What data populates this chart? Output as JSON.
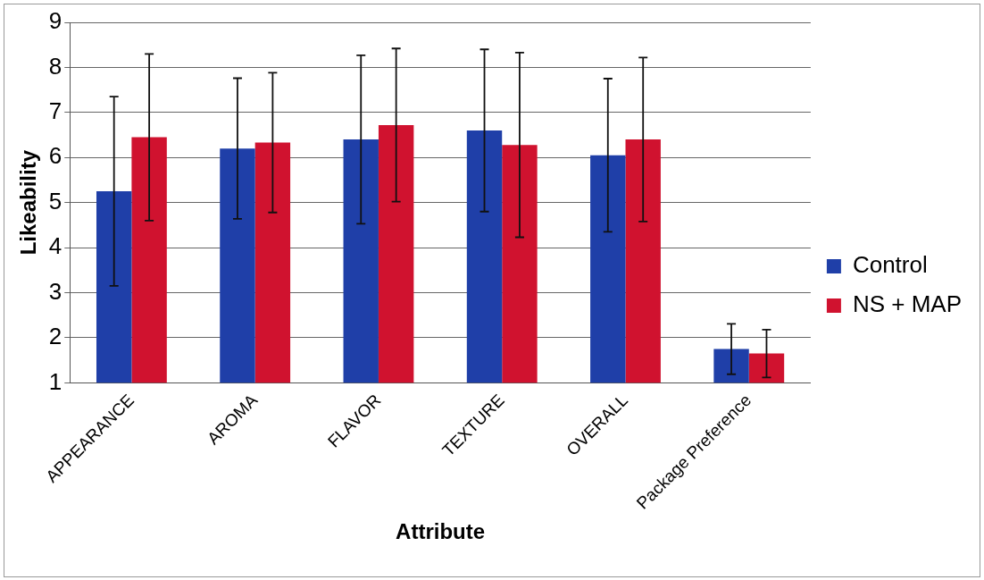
{
  "chart_data": {
    "type": "bar",
    "xlabel": "Attribute",
    "ylabel": "Likeability",
    "categories": [
      "APPEARANCE",
      "AROMA",
      "FLAVOR",
      "TEXTURE",
      "OVERALL",
      "Package Preference"
    ],
    "series": [
      {
        "name": "Control",
        "color": "#1f3fa8",
        "values": [
          5.25,
          6.2,
          6.4,
          6.6,
          6.05,
          1.75
        ],
        "errors": [
          2.1,
          1.56,
          1.87,
          1.8,
          1.7,
          0.56
        ]
      },
      {
        "name": "NS + MAP",
        "color": "#d0122f",
        "values": [
          6.45,
          6.33,
          6.72,
          6.28,
          6.4,
          1.65
        ],
        "errors": [
          1.85,
          1.55,
          1.7,
          2.05,
          1.82,
          0.53
        ]
      }
    ],
    "ylim": [
      1,
      9
    ],
    "yticks": [
      1,
      2,
      3,
      4,
      5,
      6,
      7,
      8,
      9
    ],
    "grid": "y",
    "legend": "right"
  }
}
